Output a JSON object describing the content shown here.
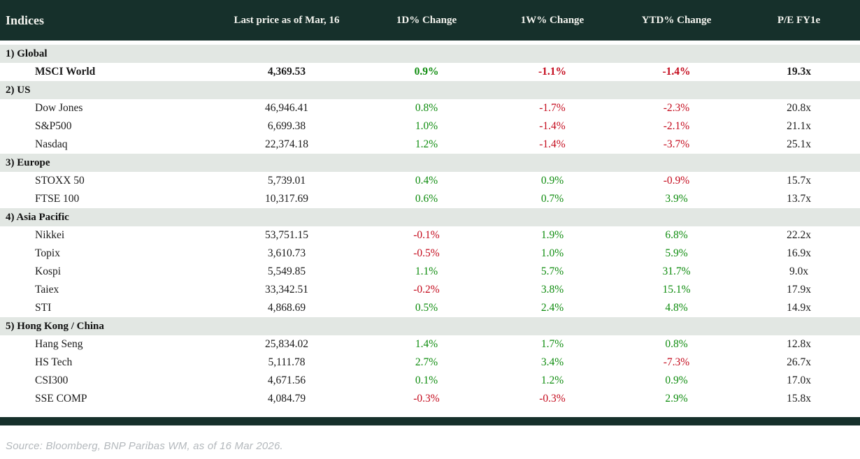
{
  "chart_data": {
    "type": "table",
    "title": "Indices",
    "columns": [
      "Indices",
      "Last price as of Mar, 16",
      "1D% Change",
      "1W% Change",
      "YTD% Change",
      "P/E FY1e"
    ],
    "sections": [
      {
        "label": "1) Global",
        "rows": [
          {
            "cells": [
              "MSCI World",
              "4,369.53",
              "0.9%",
              "-1.1%",
              "-1.4%",
              "19.3x"
            ],
            "emphasis": true
          }
        ]
      },
      {
        "label": "2) US",
        "rows": [
          {
            "cells": [
              "Dow Jones",
              "46,946.41",
              "0.8%",
              "-1.7%",
              "-2.3%",
              "20.8x"
            ]
          },
          {
            "cells": [
              "S&P500",
              "6,699.38",
              "1.0%",
              "-1.4%",
              "-2.1%",
              "21.1x"
            ]
          },
          {
            "cells": [
              "Nasdaq",
              "22,374.18",
              "1.2%",
              "-1.4%",
              "-3.7%",
              "25.1x"
            ]
          }
        ]
      },
      {
        "label": "3) Europe",
        "rows": [
          {
            "cells": [
              "STOXX 50",
              "5,739.01",
              "0.4%",
              "0.9%",
              "-0.9%",
              "15.7x"
            ]
          },
          {
            "cells": [
              "FTSE 100",
              "10,317.69",
              "0.6%",
              "0.7%",
              "3.9%",
              "13.7x"
            ]
          }
        ]
      },
      {
        "label": "4) Asia Pacific",
        "rows": [
          {
            "cells": [
              "Nikkei",
              "53,751.15",
              "-0.1%",
              "1.9%",
              "6.8%",
              "22.2x"
            ]
          },
          {
            "cells": [
              "Topix",
              "3,610.73",
              "-0.5%",
              "1.0%",
              "5.9%",
              "16.9x"
            ]
          },
          {
            "cells": [
              "Kospi",
              "5,549.85",
              "1.1%",
              "5.7%",
              "31.7%",
              "9.0x"
            ]
          },
          {
            "cells": [
              "Taiex",
              "33,342.51",
              "-0.2%",
              "3.8%",
              "15.1%",
              "17.9x"
            ]
          },
          {
            "cells": [
              "STI",
              "4,868.69",
              "0.5%",
              "2.4%",
              "4.8%",
              "14.9x"
            ]
          }
        ]
      },
      {
        "label": "5) Hong Kong / China",
        "rows": [
          {
            "cells": [
              "Hang Seng",
              "25,834.02",
              "1.4%",
              "1.7%",
              "0.8%",
              "12.8x"
            ]
          },
          {
            "cells": [
              "HS Tech",
              "5,111.78",
              "2.7%",
              "3.4%",
              "-7.3%",
              "26.7x"
            ]
          },
          {
            "cells": [
              "CSI300",
              "4,671.56",
              "0.1%",
              "1.2%",
              "0.9%",
              "17.0x"
            ]
          },
          {
            "cells": [
              "SSE COMP",
              "4,084.79",
              "-0.3%",
              "-0.3%",
              "2.9%",
              "15.8x"
            ]
          }
        ]
      }
    ],
    "source": "Source: Bloomberg, BNP Paribas WM, as of 16 Mar 2026.",
    "layout": {
      "legend": "none",
      "grid": "off"
    }
  },
  "colors": {
    "header_bg": "#16302b",
    "header_fg": "#f4f4ef",
    "section_bg": "#e2e7e3",
    "positive": "#0e8c0e",
    "negative": "#c40a1c",
    "source_fg": "#b3b8bc"
  }
}
